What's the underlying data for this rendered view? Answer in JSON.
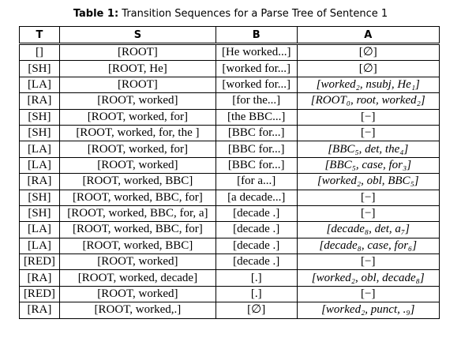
{
  "caption": {
    "label": "Table 1:",
    "text": "Transition Sequences for a Parse Tree of Sentence 1"
  },
  "headers": [
    "T",
    "S",
    "B",
    "A"
  ],
  "rows": [
    {
      "t": "[]",
      "s": "[ROOT]",
      "b": "[He worked...]",
      "a": "[∅]"
    },
    {
      "t": "[SH]",
      "s": "[ROOT, He]",
      "b": "[worked for...]",
      "a": "[∅]"
    },
    {
      "t": "[LA]",
      "s": "[ROOT]",
      "b": "[worked for...]",
      "a": "[worked₂, nsubj, He₁]"
    },
    {
      "t": "[RA]",
      "s": "[ROOT, worked]",
      "b": "[for the...]",
      "a": "[ROOT₀, root, worked₂]"
    },
    {
      "t": "[SH]",
      "s": "[ROOT, worked, for]",
      "b": "[the BBC...]",
      "a": "[−]"
    },
    {
      "t": "[SH]",
      "s": "[ROOT, worked, for, the ]",
      "b": "[BBC for...]",
      "a": "[−]"
    },
    {
      "t": "[LA]",
      "s": "[ROOT, worked, for]",
      "b": "[BBC for...]",
      "a": "[BBC₅, det, the₄]"
    },
    {
      "t": "[LA]",
      "s": "[ROOT, worked]",
      "b": "[BBC for...]",
      "a": "[BBC₅, case, for₃]"
    },
    {
      "t": "[RA]",
      "s": "[ROOT, worked, BBC]",
      "b": "[for a...]",
      "a": "[worked₂, obl, BBC₅]"
    },
    {
      "t": "[SH]",
      "s": "[ROOT, worked, BBC, for]",
      "b": "[a decade...]",
      "a": "[−]"
    },
    {
      "t": "[SH]",
      "s": "[ROOT, worked, BBC, for, a]",
      "b": "[decade .]",
      "a": "[−]"
    },
    {
      "t": "[LA]",
      "s": "[ROOT, worked, BBC, for]",
      "b": "[decade .]",
      "a": "[decade₈, det, a₇]"
    },
    {
      "t": "[LA]",
      "s": "[ROOT, worked, BBC]",
      "b": "[decade .]",
      "a": "[decade₈, case, for₆]"
    },
    {
      "t": "[RED]",
      "s": "[ROOT, worked]",
      "b": "[decade .]",
      "a": "[−]"
    },
    {
      "t": "[RA]",
      "s": "[ROOT, worked, decade]",
      "b": "[.]",
      "a": "[worked₂, obl, decade₈]"
    },
    {
      "t": "[RED]",
      "s": "[ROOT, worked]",
      "b": "[.]",
      "a": "[−]"
    },
    {
      "t": "[RA]",
      "s": "[ROOT, worked,.]",
      "b": "[∅]",
      "a": "[worked₂, punct, .₉]"
    }
  ]
}
